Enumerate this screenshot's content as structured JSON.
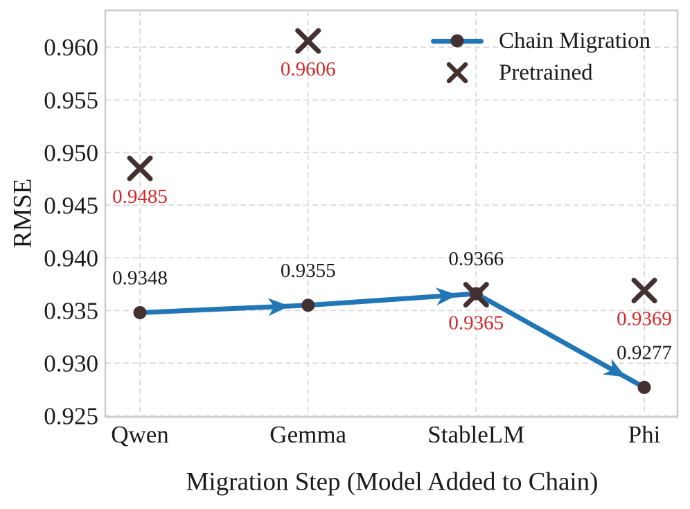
{
  "chart_data": {
    "type": "line",
    "title": "",
    "xlabel": "Migration Step (Model Added to Chain)",
    "ylabel": "RMSE",
    "categories": [
      "Qwen",
      "Gemma",
      "StableLM",
      "Phi"
    ],
    "series": [
      {
        "name": "Chain Migration",
        "marker": "circle",
        "arrows": true,
        "color": "#2176b5",
        "marker_color": "#433132",
        "label_color": "#1b1b1b",
        "values": [
          0.9348,
          0.9355,
          0.9366,
          0.9277
        ],
        "labels": [
          "0.9348",
          "0.9355",
          "0.9366",
          "0.9277"
        ]
      },
      {
        "name": "Pretrained",
        "marker": "x",
        "arrows": false,
        "color": "#433132",
        "marker_color": "#433132",
        "label_color": "#d62728",
        "values": [
          0.9485,
          0.9606,
          0.9365,
          0.9369
        ],
        "labels": [
          "0.9485",
          "0.9606",
          "0.9365",
          "0.9369"
        ]
      }
    ],
    "yticks": [
      0.925,
      0.93,
      0.935,
      0.94,
      0.945,
      0.95,
      0.955,
      0.96
    ],
    "ytick_labels": [
      "0.925",
      "0.930",
      "0.935",
      "0.940",
      "0.945",
      "0.950",
      "0.955",
      "0.960"
    ],
    "ylim": [
      0.9249,
      0.9635
    ],
    "grid": true,
    "legend_position": "upper right"
  }
}
